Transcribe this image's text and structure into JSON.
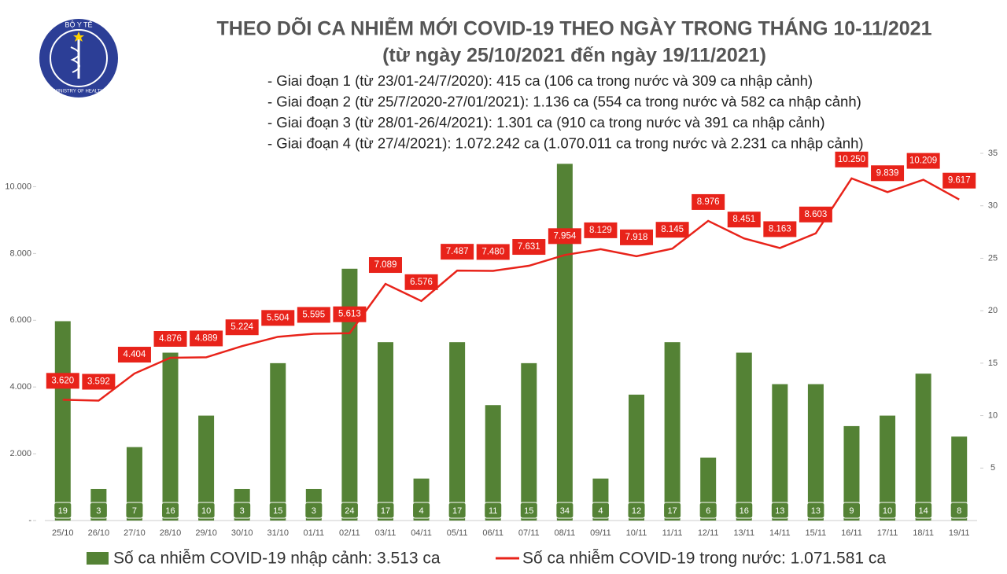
{
  "logo": {
    "top": "BỘ Y TẾ",
    "bottom": "MINISTRY OF HEALTH"
  },
  "chart_data": {
    "type": "combo",
    "title": "THEO DÕI CA NHIỄM MỚI COVID-19 THEO NGÀY TRONG THÁNG 10-11/2021",
    "subtitle": "(từ ngày 25/10/2021 đến ngày 19/11/2021)",
    "notes": [
      "- Giai đoạn 1 (từ 23/01-24/7/2020): 415 ca (106 ca trong nước và 309 ca nhập cảnh)",
      "- Giai đoạn 2 (từ 25/7/2020-27/01/2021): 1.136 ca (554 ca trong nước và 582 ca nhập cảnh)",
      "- Giai đoạn 3 (từ 28/01-26/4/2021): 1.301 ca (910 ca trong nước và 391 ca nhập cảnh)",
      "- Giai đoạn 4 (từ 27/4/2021): 1.072.242 ca (1.070.011 ca trong nước và 2.231 ca nhập cảnh)"
    ],
    "categories": [
      "25/10",
      "26/10",
      "27/10",
      "28/10",
      "29/10",
      "30/10",
      "31/10",
      "01/11",
      "02/11",
      "03/11",
      "04/11",
      "05/11",
      "06/11",
      "07/11",
      "08/11",
      "09/11",
      "10/11",
      "11/11",
      "12/11",
      "13/11",
      "14/11",
      "15/11",
      "16/11",
      "17/11",
      "18/11",
      "19/11"
    ],
    "series": [
      {
        "name": "Số ca nhiễm COVID-19 nhập cảnh: 3.513 ca",
        "type": "bar",
        "axis": "y2",
        "color": "#548235",
        "values": [
          19,
          3,
          7,
          16,
          10,
          3,
          15,
          3,
          24,
          17,
          4,
          17,
          11,
          15,
          34,
          4,
          12,
          17,
          6,
          16,
          13,
          13,
          9,
          10,
          14,
          8
        ]
      },
      {
        "name": "Số ca nhiễm COVID-19 trong nước: 1.071.581 ca",
        "type": "line",
        "color": "#e8231a",
        "values": [
          3620,
          3592,
          4404,
          4876,
          4889,
          5224,
          5504,
          5595,
          5613,
          7089,
          6576,
          7487,
          7480,
          7631,
          7954,
          8129,
          7918,
          8145,
          8976,
          8451,
          8163,
          8603,
          10250,
          9839,
          10209,
          9617
        ],
        "value_labels": [
          "3.620",
          "3.592",
          "4.404",
          "4.876",
          "4.889",
          "5.224",
          "5.504",
          "5.595",
          "5.613",
          "7.089",
          "6.576",
          "7.487",
          "7.480",
          "7.631",
          "7.954",
          "8.129",
          "7.918",
          "8.145",
          "8.976",
          "8.451",
          "8.163",
          "8.603",
          "10.250",
          "9.839",
          "10.209",
          "9.617"
        ]
      }
    ],
    "ylim": [
      0,
      11000
    ],
    "yticks": [
      {
        "value": 0,
        "label": "-"
      },
      {
        "value": 2000,
        "label": "2.000"
      },
      {
        "value": 4000,
        "label": "4.000"
      },
      {
        "value": 6000,
        "label": "6.000"
      },
      {
        "value": 8000,
        "label": "8.000"
      },
      {
        "value": 10000,
        "label": "10.000"
      }
    ],
    "y2lim": [
      0,
      35
    ],
    "y2ticks": [
      5,
      10,
      15,
      20,
      25,
      30,
      35
    ]
  }
}
